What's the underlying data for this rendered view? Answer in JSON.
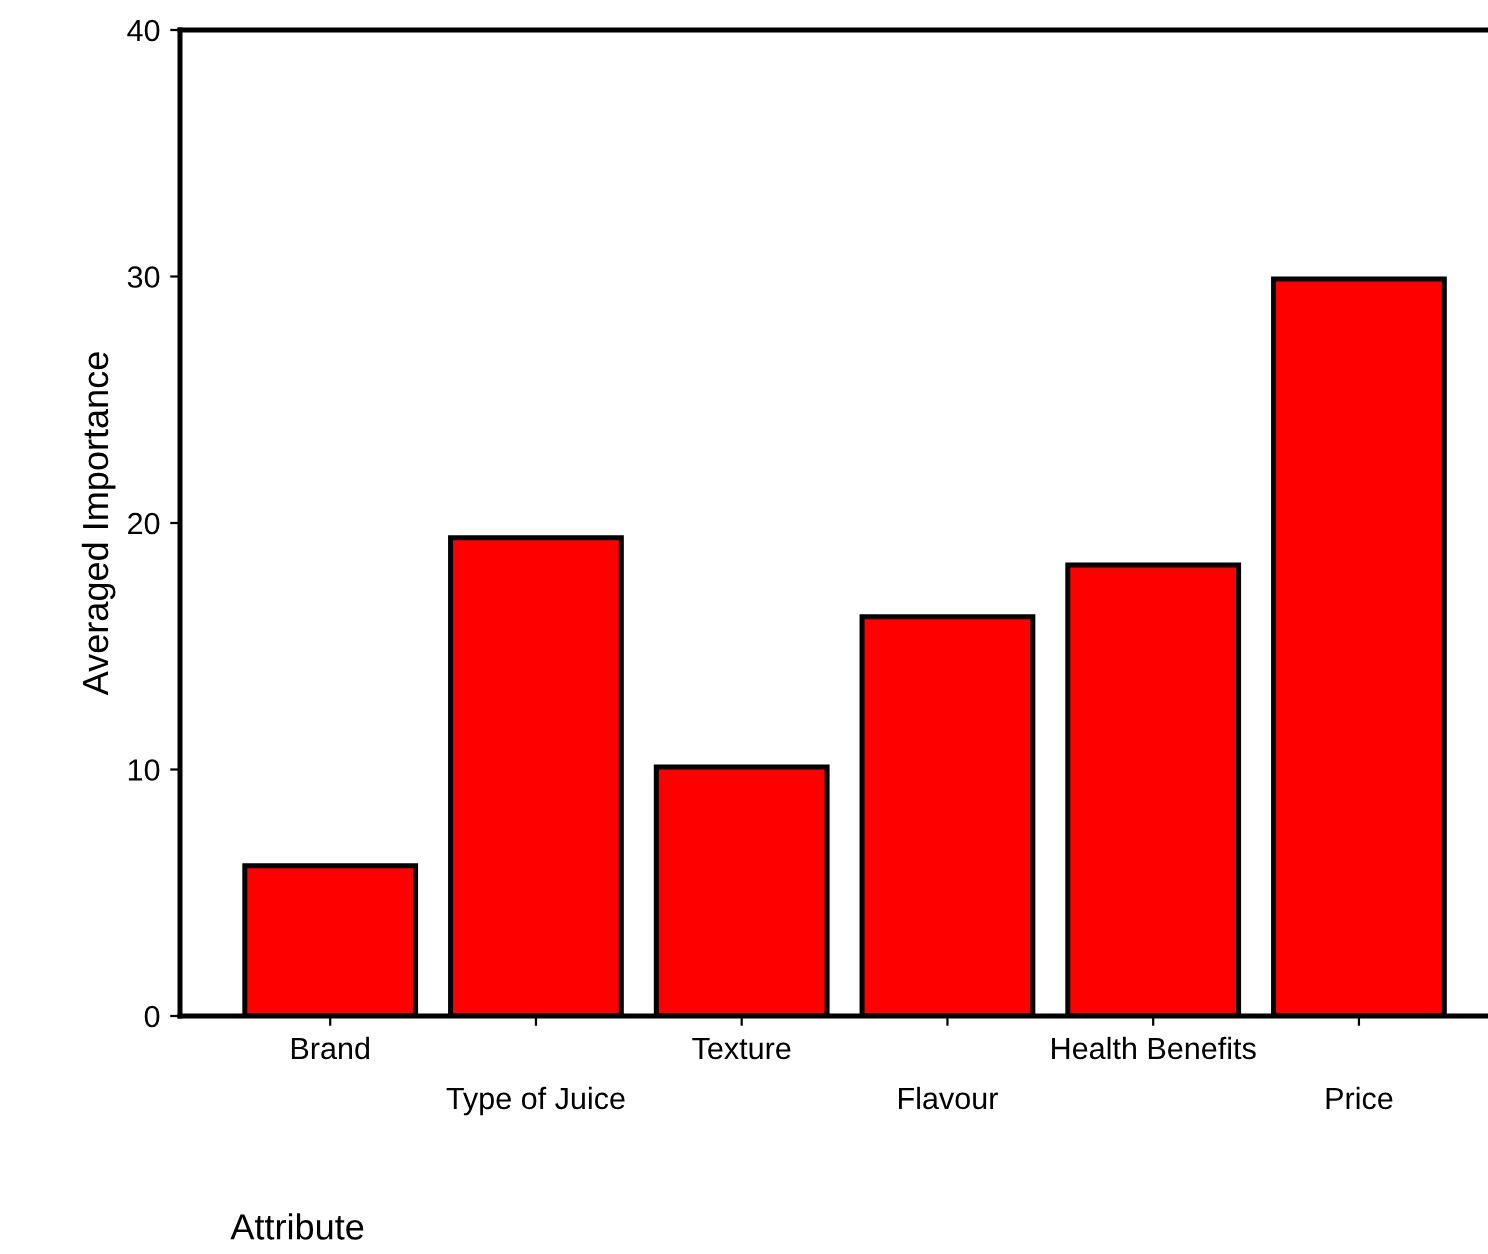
{
  "chart_data": {
    "type": "bar",
    "ylabel": "Averaged Importance",
    "xlabel": "Attribute",
    "categories": [
      "Brand",
      "Type of Juice",
      "Texture",
      "Flavour",
      "Health Benefits",
      "Price"
    ],
    "values": [
      6.1,
      19.4,
      10.1,
      16.2,
      18.3,
      29.9
    ],
    "color": "#ff0000",
    "ylim": [
      0,
      40
    ],
    "yticks": [
      0,
      10,
      20,
      30,
      40
    ],
    "grid": false,
    "legend": false
  }
}
